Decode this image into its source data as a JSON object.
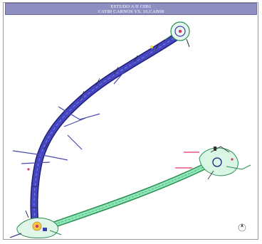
{
  "title": {
    "line1": "ESTUDO A II C0B1",
    "line2": "CAT80 CARNOS VS. 16.CAB08"
  },
  "labels": {
    "branch_label_a": "——",
    "branch_label_b": "——"
  },
  "colors": {
    "main_road": "#3d3db0",
    "road_edge": "#1d1d7a",
    "branch_road": "#6fdca0",
    "branch_edge": "#2b8f52",
    "plaza_fill": "#c8f0d8",
    "accent_red": "#e0306a",
    "accent_yellow": "#e6d84a",
    "title_bg": "#8f8ec0"
  },
  "icons": {
    "north_marker": "compass-icon"
  }
}
